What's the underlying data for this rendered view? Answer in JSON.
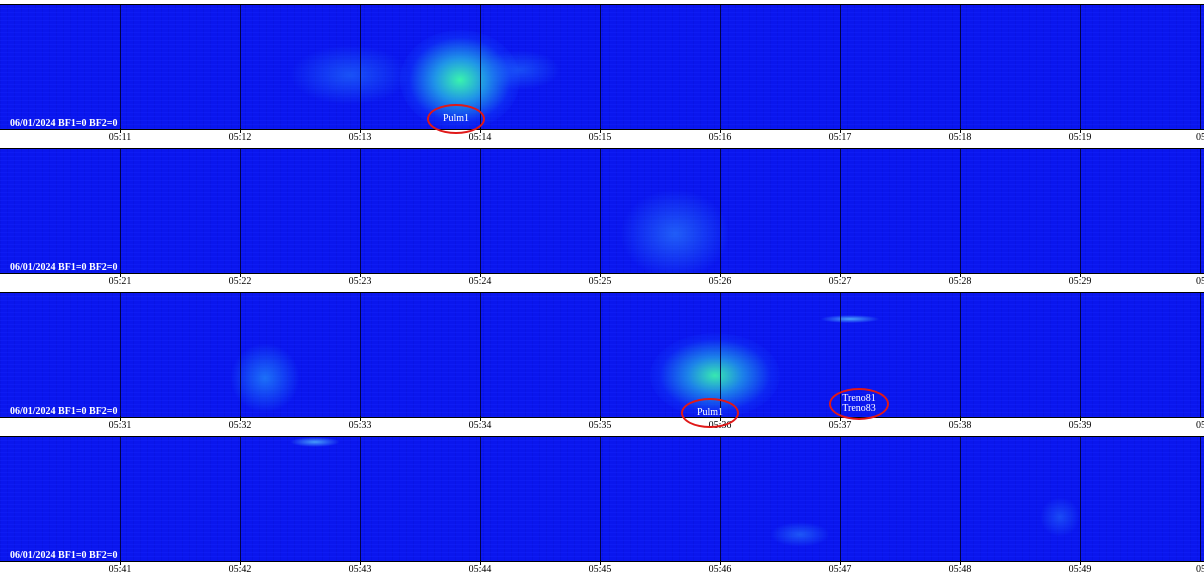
{
  "panels": [
    {
      "stamp": "06/01/2024 BF1=0 BF2=0",
      "ticks": [
        "05:11",
        "05:12",
        "05:13",
        "05:14",
        "05:15",
        "05:16",
        "05:17",
        "05:18",
        "05:19",
        "05:2"
      ]
    },
    {
      "stamp": "06/01/2024 BF1=0 BF2=0",
      "ticks": [
        "05:21",
        "05:22",
        "05:23",
        "05:24",
        "05:25",
        "05:26",
        "05:27",
        "05:28",
        "05:29",
        "05:3"
      ]
    },
    {
      "stamp": "06/01/2024 BF1=0 BF2=0",
      "ticks": [
        "05:31",
        "05:32",
        "05:33",
        "05:34",
        "05:35",
        "05:36",
        "05:37",
        "05:38",
        "05:39",
        "05:4"
      ]
    },
    {
      "stamp": "06/01/2024 BF1=0 BF2=0",
      "ticks": [
        "05:41",
        "05:42",
        "05:43",
        "05:44",
        "05:45",
        "05:46",
        "05:47",
        "05:48",
        "05:49",
        "05:5"
      ]
    }
  ],
  "annotations": {
    "a1": "Pulm1",
    "a2": "Pulm1",
    "a3_line1": "Treno81",
    "a3_line2": "Treno83"
  },
  "colors": {
    "background": "#0a16ee",
    "annotation": "#e01818",
    "signal": "#2dff9a"
  }
}
